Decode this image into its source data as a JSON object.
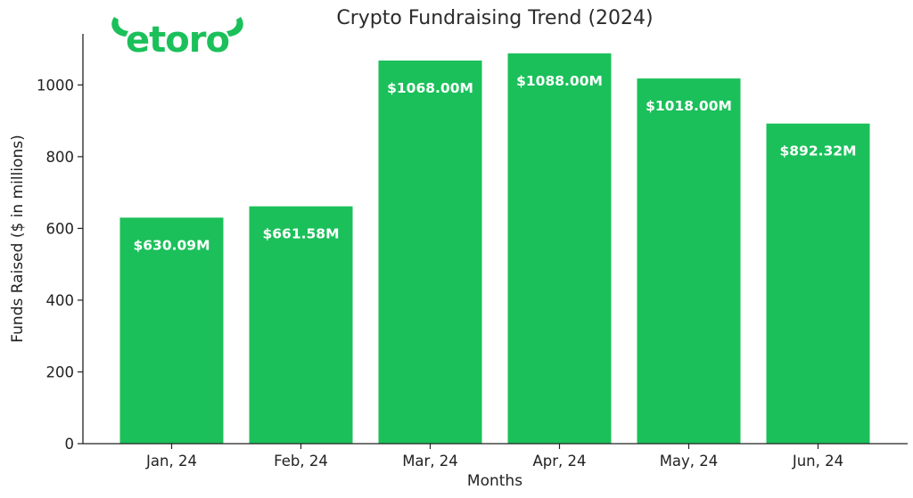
{
  "logo": {
    "text": "etoro",
    "color": "#1bc05a"
  },
  "chart_data": {
    "type": "bar",
    "title": "Crypto Fundraising Trend (2024)",
    "xlabel": "Months",
    "ylabel": "Funds Raised ($ in millions)",
    "categories": [
      "Jan, 24",
      "Feb, 24",
      "Mar, 24",
      "Apr, 24",
      "May, 24",
      "Jun, 24"
    ],
    "values": [
      630.09,
      661.58,
      1068.0,
      1088.0,
      1018.0,
      892.32
    ],
    "data_labels": [
      "$630.09M",
      "$661.58M",
      "$1068.00M",
      "$1088.00M",
      "$1018.00M",
      "$892.32M"
    ],
    "yticks": [
      "0",
      "200",
      "400",
      "600",
      "800",
      "1000"
    ],
    "ylim": [
      0,
      1142.4
    ],
    "bar_color": "#1bc05a",
    "grid": false,
    "legend": false
  }
}
